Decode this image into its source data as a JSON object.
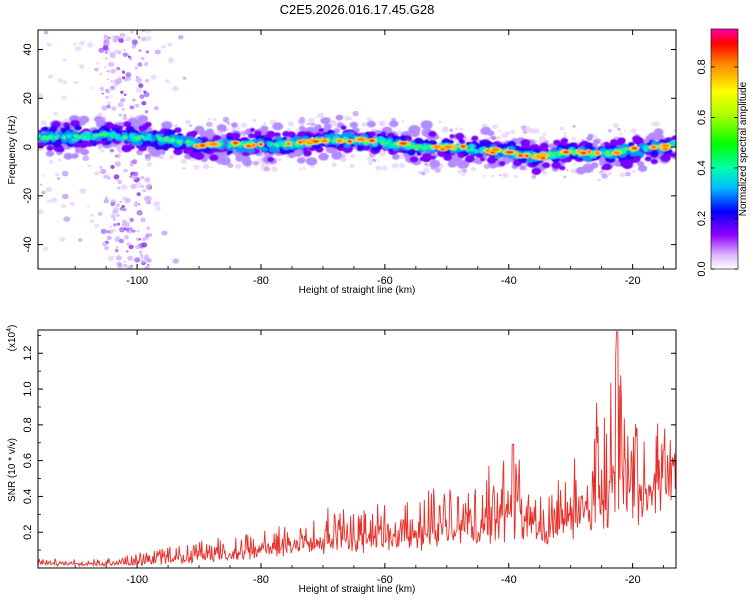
{
  "title": "C2E5.2026.016.17.45.G28",
  "chart_data": [
    {
      "type": "heatmap",
      "xlabel": "Height of straight line (km)",
      "ylabel": "Frequency (Hz)",
      "xlim": [
        -116,
        -13
      ],
      "ylim": [
        -50,
        48
      ],
      "xticks": [
        -100,
        -80,
        -60,
        -40,
        -20
      ],
      "xtick_labels": [
        "-100",
        "-80",
        "-60",
        "-40",
        "-20"
      ],
      "yticks": [
        -40,
        -20,
        0,
        20,
        40
      ],
      "ytick_labels": [
        "-40",
        "-20",
        "0",
        "20",
        "40"
      ],
      "colorbar": {
        "label": "Normalized spectral amplitude",
        "range": [
          0,
          0.95
        ],
        "ticks": [
          0.0,
          0.2,
          0.4,
          0.6,
          0.8
        ],
        "tick_labels": [
          "0.0",
          "0.2",
          "0.4",
          "0.6",
          "0.8"
        ]
      },
      "ridge": {
        "x": [
          -116,
          -110,
          -105,
          -100,
          -95,
          -90,
          -85,
          -80,
          -75,
          -70,
          -65,
          -60,
          -55,
          -50,
          -45,
          -40,
          -35,
          -30,
          -25,
          -20,
          -15,
          -13
        ],
        "frequency": [
          4,
          4,
          5,
          4,
          3,
          1,
          1,
          1,
          1,
          3,
          3,
          2,
          0,
          0,
          -1,
          -2,
          -4,
          -2,
          -3,
          -1,
          0,
          1
        ]
      },
      "scatter_band": {
        "x_range": [
          -106,
          -98
        ],
        "frequency_range": [
          -50,
          48
        ]
      }
    },
    {
      "type": "line",
      "xlabel": "Height of straight line (km)",
      "ylabel": "SNR (10 * v/v)",
      "scale_label": "(x10",
      "scale_exponent": "4",
      "color": "#e8302a",
      "xlim": [
        -116,
        -13
      ],
      "ylim": [
        0,
        1.33
      ],
      "xticks": [
        -100,
        -80,
        -60,
        -40,
        -20
      ],
      "xtick_labels": [
        "-100",
        "-80",
        "-60",
        "-40",
        "-20"
      ],
      "yticks": [
        0.2,
        0.4,
        0.6,
        0.8,
        1.0,
        1.2
      ],
      "ytick_labels": [
        "0.2",
        "0.4",
        "0.6",
        "0.8",
        "1.0",
        "1.2"
      ],
      "envelope": {
        "x": [
          -116,
          -105,
          -100,
          -95,
          -90,
          -85,
          -80,
          -75,
          -70,
          -65,
          -60,
          -55,
          -50,
          -45,
          -42,
          -39,
          -37,
          -35,
          -30,
          -27,
          -24,
          -22.5,
          -21,
          -18,
          -15,
          -13
        ],
        "baseline": [
          0.02,
          0.02,
          0.02,
          0.03,
          0.05,
          0.07,
          0.09,
          0.11,
          0.13,
          0.14,
          0.15,
          0.17,
          0.19,
          0.21,
          0.24,
          0.26,
          0.22,
          0.2,
          0.28,
          0.32,
          0.35,
          0.45,
          0.4,
          0.45,
          0.5,
          0.55
        ],
        "peak": [
          0.05,
          0.05,
          0.08,
          0.12,
          0.15,
          0.18,
          0.22,
          0.28,
          0.3,
          0.33,
          0.35,
          0.38,
          0.42,
          0.45,
          0.55,
          0.7,
          0.45,
          0.4,
          0.6,
          0.78,
          0.9,
          1.32,
          0.85,
          0.8,
          0.85,
          0.7
        ]
      }
    }
  ]
}
